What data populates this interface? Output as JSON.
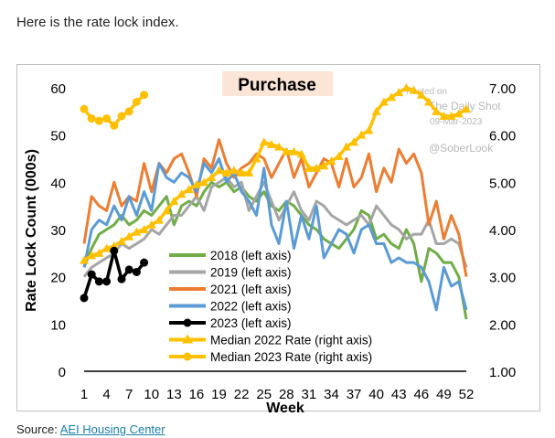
{
  "intro_text": "Here is the rate lock index.",
  "source_label": "Source: ",
  "source_link": "AEI Housing Center",
  "watermark": {
    "line1": "Posted on",
    "line2": "The Daily Shot",
    "line3": "09-Mar-2023",
    "line4": "@SoberLook"
  },
  "chart_data": {
    "type": "line",
    "title": "Purchase",
    "title_bg": "#fbe5d6",
    "xlabel": "Week",
    "ylabel": "Rate Lock Count (000s)",
    "x_ticks": [
      "1",
      "4",
      "7",
      "10",
      "13",
      "16",
      "19",
      "22",
      "25",
      "28",
      "31",
      "34",
      "37",
      "40",
      "43",
      "46",
      "49",
      "52"
    ],
    "y_left_ticks": [
      "0",
      "10",
      "20",
      "30",
      "40",
      "50",
      "60"
    ],
    "y_right_ticks": [
      "1.00",
      "2.00",
      "3.00",
      "4.00",
      "5.00",
      "6.00",
      "7.00"
    ],
    "ylim_left": [
      0,
      60
    ],
    "ylim_right": [
      1,
      7
    ],
    "xlim": [
      1,
      52
    ],
    "grid": false,
    "series": [
      {
        "name": "2018 (left axis)",
        "axis": "left",
        "color": "#70ad47",
        "marker": "none",
        "values": [
          22,
          26,
          29,
          30,
          31,
          33,
          31,
          32,
          34,
          33,
          35,
          37,
          31,
          35,
          36,
          35,
          38,
          40,
          39,
          40,
          38,
          39,
          37,
          36,
          38,
          35,
          34,
          36,
          35,
          33,
          31,
          30,
          28,
          27,
          26,
          28,
          30,
          34,
          33,
          28,
          29,
          27,
          26,
          30,
          27,
          19,
          26,
          25,
          23,
          23,
          20,
          11
        ]
      },
      {
        "name": "2019 (left axis)",
        "axis": "left",
        "color": "#a5a5a5",
        "marker": "none",
        "values": [
          20,
          22,
          23,
          24,
          25,
          27,
          26,
          27,
          28,
          30,
          29,
          31,
          33,
          33,
          35,
          37,
          34,
          39,
          40,
          41,
          39,
          40,
          34,
          37,
          40,
          36,
          32,
          35,
          38,
          34,
          32,
          36,
          35,
          33,
          32,
          31,
          32,
          33,
          31,
          35,
          33,
          31,
          30,
          28,
          29,
          29,
          32,
          27,
          27,
          28,
          27,
          22
        ]
      },
      {
        "name": "2021 (left axis)",
        "axis": "left",
        "color": "#ed7d31",
        "marker": "none",
        "values": [
          27,
          37,
          35,
          34,
          40,
          35,
          37,
          36,
          44,
          38,
          44,
          42,
          45,
          46,
          42,
          37,
          45,
          43,
          49,
          44,
          41,
          43,
          44,
          46,
          45,
          41,
          44,
          47,
          41,
          45,
          39,
          42,
          45,
          44,
          39,
          45,
          39,
          41,
          46,
          38,
          43,
          40,
          47,
          44,
          46,
          42,
          31,
          36,
          28,
          33,
          29,
          20
        ]
      },
      {
        "name": "2022 (left axis)",
        "axis": "left",
        "color": "#5b9bd5",
        "marker": "none",
        "values": [
          22,
          30,
          32,
          31,
          35,
          32,
          37,
          33,
          38,
          34,
          44,
          41,
          40,
          42,
          41,
          38,
          44,
          42,
          45,
          40,
          42,
          38,
          36,
          33,
          43,
          31,
          27,
          36,
          26,
          33,
          28,
          35,
          24,
          27,
          30,
          29,
          25,
          30,
          31,
          27,
          27,
          23,
          24,
          23,
          23,
          22,
          19,
          13,
          22,
          18,
          19,
          13
        ]
      },
      {
        "name": "2023 (left axis)",
        "axis": "left",
        "color": "#000000",
        "marker": "circle",
        "values": [
          15.5,
          20.5,
          19,
          19,
          25.5,
          19.5,
          21.5,
          21,
          23
        ]
      },
      {
        "name": "Median 2022 Rate (right axis)",
        "axis": "right",
        "color": "#ffc000",
        "marker": "triangle",
        "values": [
          3.35,
          3.45,
          3.5,
          3.6,
          3.65,
          3.75,
          3.85,
          3.95,
          4.0,
          4.1,
          4.2,
          4.4,
          4.6,
          4.75,
          4.85,
          4.95,
          5.0,
          5.1,
          5.25,
          5.2,
          5.25,
          5.2,
          5.2,
          5.5,
          5.85,
          5.8,
          5.75,
          5.65,
          5.65,
          5.6,
          5.3,
          5.3,
          5.35,
          5.45,
          5.55,
          5.75,
          5.85,
          6.0,
          6.1,
          6.5,
          6.7,
          6.8,
          6.9,
          7.0,
          6.95,
          6.85,
          6.7,
          6.5,
          6.4,
          6.4,
          6.45,
          6.55
        ]
      },
      {
        "name": "Median 2023 Rate (right axis)",
        "axis": "right",
        "color": "#ffc000",
        "marker": "circle",
        "values": [
          6.55,
          6.35,
          6.3,
          6.35,
          6.2,
          6.4,
          6.5,
          6.7,
          6.85
        ]
      }
    ]
  }
}
